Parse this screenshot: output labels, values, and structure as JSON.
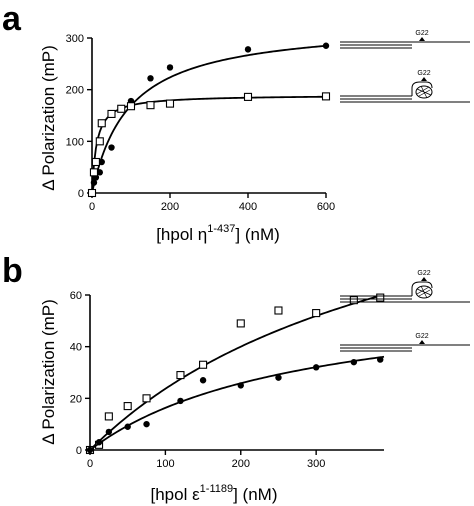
{
  "chart_data": [
    {
      "panel": "a",
      "type": "scatter",
      "ylabel": "Δ Polarization (mP)",
      "xlabel_main": "[hpol η",
      "xlabel_sup": "1-437",
      "xlabel_tail": "] (nM)",
      "xlim": [
        0,
        600
      ],
      "ylim": [
        0,
        300
      ],
      "xticks": [
        "0",
        "200",
        "400",
        "600"
      ],
      "yticks": [
        "0",
        "100",
        "200",
        "300"
      ],
      "series": [
        {
          "marker": "filled-circle",
          "x": [
            0,
            5,
            10,
            20,
            25,
            50,
            75,
            100,
            150,
            200,
            400,
            600
          ],
          "y": [
            0,
            20,
            30,
            40,
            60,
            88,
            163,
            178,
            222,
            243,
            278,
            285
          ],
          "fit": {
            "model": "hyperbola",
            "bmax": 330,
            "kd": 95
          }
        },
        {
          "marker": "open-square",
          "x": [
            0,
            5,
            10,
            20,
            25,
            50,
            75,
            100,
            150,
            200,
            400,
            600
          ],
          "y": [
            0,
            40,
            60,
            100,
            135,
            153,
            163,
            168,
            170,
            173,
            186,
            187
          ],
          "fit": {
            "model": "hyperbola",
            "bmax": 190,
            "kd": 12
          }
        }
      ],
      "schematics": [
        {
          "label": "G22",
          "type": "linear"
        },
        {
          "label": "G22",
          "type": "g-quadruplex"
        }
      ]
    },
    {
      "panel": "b",
      "type": "scatter",
      "ylabel": "Δ Polarization (mP)",
      "xlabel_main": "[hpol ε",
      "xlabel_sup": "1-1189",
      "xlabel_tail": "] (nM)",
      "xlim": [
        0,
        390
      ],
      "ylim": [
        0,
        60
      ],
      "xticks": [
        "0",
        "100",
        "200",
        "300"
      ],
      "yticks": [
        "0",
        "20",
        "40",
        "60"
      ],
      "series": [
        {
          "marker": "open-square",
          "x": [
            0,
            12,
            25,
            50,
            75,
            120,
            150,
            200,
            250,
            300,
            350,
            385
          ],
          "y": [
            0,
            2,
            13,
            17,
            20,
            29,
            33,
            49,
            54,
            53,
            58,
            59
          ],
          "fit": {
            "model": "hyperbola",
            "bmax": 128,
            "kd": 440
          }
        },
        {
          "marker": "filled-circle",
          "x": [
            0,
            12,
            25,
            50,
            75,
            120,
            150,
            200,
            250,
            300,
            350,
            385
          ],
          "y": [
            0,
            3,
            7,
            9,
            10,
            19,
            27,
            25,
            28,
            32,
            34,
            35
          ],
          "fit": {
            "model": "hyperbola",
            "bmax": 62,
            "kd": 280
          }
        }
      ],
      "schematics": [
        {
          "label": "G22",
          "type": "g-quadruplex"
        },
        {
          "label": "G22",
          "type": "linear"
        }
      ]
    }
  ]
}
